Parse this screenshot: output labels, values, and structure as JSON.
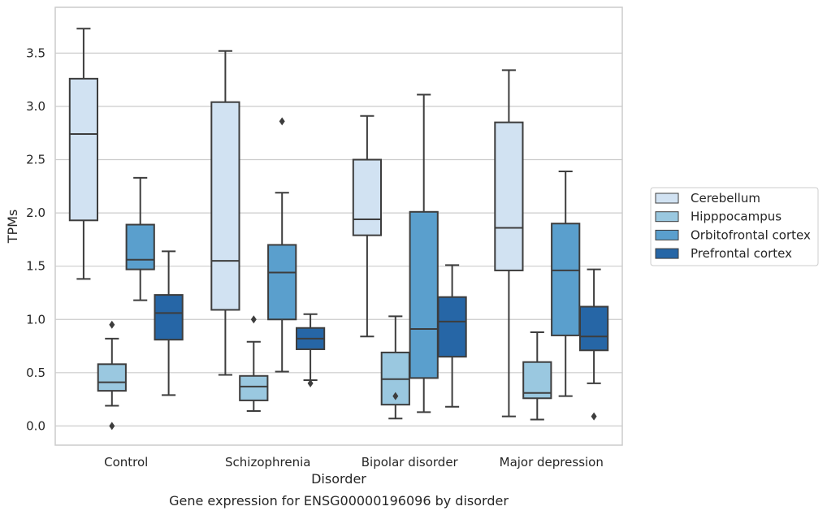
{
  "chart_data": {
    "type": "box",
    "title": "",
    "caption": "Gene expression for ENSG00000196096 by disorder",
    "xlabel": "Disorder",
    "ylabel": "TPMs",
    "ylim": [
      -0.18,
      3.93
    ],
    "yticks": [
      0.0,
      0.5,
      1.0,
      1.5,
      2.0,
      2.5,
      3.0,
      3.5
    ],
    "ytick_labels": [
      "0.0",
      "0.5",
      "1.0",
      "1.5",
      "2.0",
      "2.5",
      "3.0",
      "3.5"
    ],
    "grid": "horizontal",
    "legend_position": "right",
    "categories": [
      "Control",
      "Schizophrenia",
      "Bipolar disorder",
      "Major depression"
    ],
    "series": [
      {
        "name": "Cerebellum",
        "color": "#d1e2f2",
        "boxes": [
          {
            "whisker_low": 1.38,
            "q1": 1.93,
            "median": 2.74,
            "q3": 3.26,
            "whisker_high": 3.73,
            "outliers": []
          },
          {
            "whisker_low": 0.48,
            "q1": 1.09,
            "median": 1.55,
            "q3": 3.04,
            "whisker_high": 3.52,
            "outliers": []
          },
          {
            "whisker_low": 0.84,
            "q1": 1.79,
            "median": 1.94,
            "q3": 2.5,
            "whisker_high": 2.91,
            "outliers": []
          },
          {
            "whisker_low": 0.09,
            "q1": 1.46,
            "median": 1.86,
            "q3": 2.85,
            "whisker_high": 3.34,
            "outliers": []
          }
        ]
      },
      {
        "name": "Hipppocampus",
        "color": "#9ac8e0",
        "boxes": [
          {
            "whisker_low": 0.19,
            "q1": 0.33,
            "median": 0.41,
            "q3": 0.58,
            "whisker_high": 0.82,
            "outliers": [
              0.95,
              0.0
            ]
          },
          {
            "whisker_low": 0.14,
            "q1": 0.24,
            "median": 0.37,
            "q3": 0.47,
            "whisker_high": 0.79,
            "outliers": [
              1.0
            ]
          },
          {
            "whisker_low": 0.07,
            "q1": 0.2,
            "median": 0.44,
            "q3": 0.69,
            "whisker_high": 1.03,
            "outliers": [
              0.28
            ]
          },
          {
            "whisker_low": 0.06,
            "q1": 0.26,
            "median": 0.31,
            "q3": 0.6,
            "whisker_high": 0.88,
            "outliers": []
          }
        ]
      },
      {
        "name": "Orbitofrontal cortex",
        "color": "#5a9fcd",
        "boxes": [
          {
            "whisker_low": 1.18,
            "q1": 1.47,
            "median": 1.56,
            "q3": 1.89,
            "whisker_high": 2.33,
            "outliers": []
          },
          {
            "whisker_low": 0.51,
            "q1": 1.0,
            "median": 1.44,
            "q3": 1.7,
            "whisker_high": 2.19,
            "outliers": [
              2.86
            ]
          },
          {
            "whisker_low": 0.13,
            "q1": 0.45,
            "median": 0.91,
            "q3": 2.01,
            "whisker_high": 3.11,
            "outliers": []
          },
          {
            "whisker_low": 0.28,
            "q1": 0.85,
            "median": 1.46,
            "q3": 1.9,
            "whisker_high": 2.39,
            "outliers": []
          }
        ]
      },
      {
        "name": "Prefrontal cortex",
        "color": "#2666a6",
        "boxes": [
          {
            "whisker_low": 0.29,
            "q1": 0.81,
            "median": 1.06,
            "q3": 1.23,
            "whisker_high": 1.64,
            "outliers": []
          },
          {
            "whisker_low": 0.43,
            "q1": 0.72,
            "median": 0.82,
            "q3": 0.92,
            "whisker_high": 1.05,
            "outliers": [
              0.4
            ]
          },
          {
            "whisker_low": 0.18,
            "q1": 0.65,
            "median": 0.98,
            "q3": 1.21,
            "whisker_high": 1.51,
            "outliers": []
          },
          {
            "whisker_low": 0.4,
            "q1": 0.71,
            "median": 0.84,
            "q3": 1.12,
            "whisker_high": 1.47,
            "outliers": [
              0.09
            ]
          }
        ]
      }
    ]
  }
}
